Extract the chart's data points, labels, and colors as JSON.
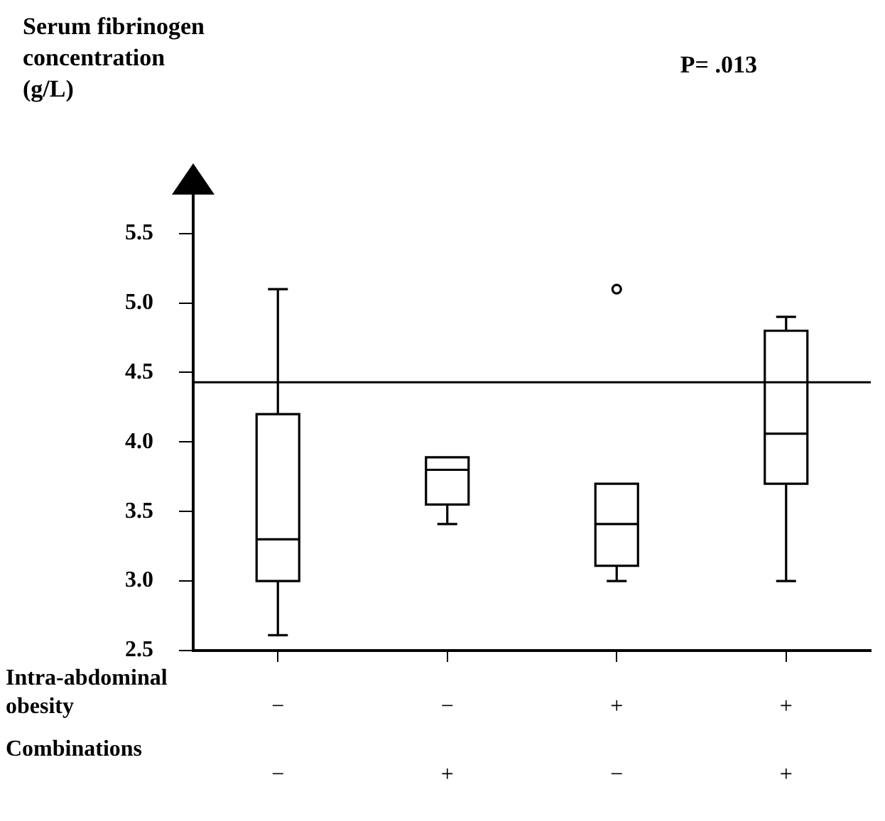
{
  "chart_data": {
    "type": "box",
    "ylabel": "Serum fibrinogen concentration (g/L)",
    "categories": [
      "−\n−",
      "−\n+",
      "+\n−",
      "+\n+"
    ],
    "boxes": [
      {
        "low": 2.61,
        "q1": 3.0,
        "median": 3.3,
        "q3": 4.2,
        "high": 5.1
      },
      {
        "low": 3.41,
        "q1": 3.55,
        "median": 3.8,
        "q3": 3.89,
        "high": 3.89
      },
      {
        "low": 3.0,
        "q1": 3.11,
        "median": 3.41,
        "q3": 3.7,
        "high": 3.7,
        "outliers": [
          5.1
        ]
      },
      {
        "low": 3.0,
        "q1": 3.7,
        "median": 4.06,
        "q3": 4.8,
        "high": 4.9
      }
    ],
    "color": "#000000",
    "ylim": [
      2.5,
      5.8
    ],
    "yticks": [
      2.5,
      {
        "value": 3,
        "label": "3.0"
      },
      3.5,
      {
        "value": 4,
        "label": "4.0"
      },
      4.5,
      {
        "value": 5,
        "label": "5.0"
      },
      5.5
    ],
    "ref_lines": [
      {
        "axis": "y",
        "value": 4.43
      }
    ],
    "annotations": [
      "P= .013",
      "Intra-abdominal obesity",
      "Combinations"
    ],
    "grid": false,
    "legend": false
  }
}
